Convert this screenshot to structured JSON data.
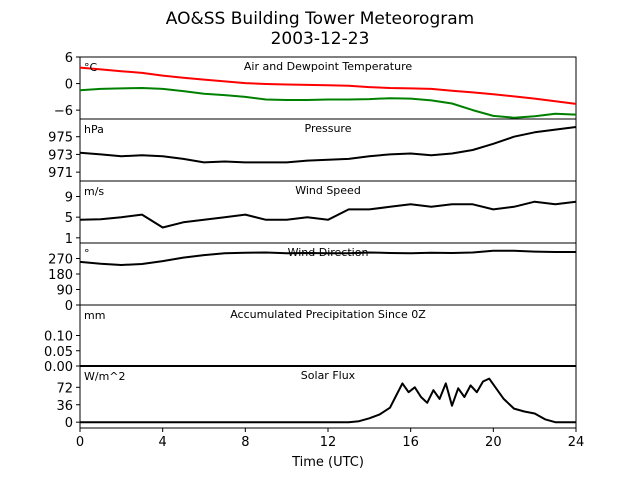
{
  "chart_data": {
    "type": "line",
    "title": [
      "AO&SS Building Tower Meteorogram",
      "2003-12-23"
    ],
    "xlabel": "Time (UTC)",
    "xlim": [
      0,
      24
    ],
    "x_ticks": [
      0,
      4,
      8,
      12,
      16,
      20,
      24
    ],
    "x_tick_labels": [
      "0",
      "4",
      "8",
      "12",
      "16",
      "20",
      "24"
    ],
    "panels": [
      {
        "name": "temperature",
        "title": "Air and Dewpoint Temperature",
        "unit": "°C",
        "ylim": [
          -8,
          6
        ],
        "y_ticks": [
          6,
          0,
          -6
        ],
        "y_tick_labels": [
          "6",
          "0",
          "−6"
        ],
        "series": [
          {
            "name": "Air Temperature",
            "color": "#ff0000",
            "x": [
              0,
              1,
              2,
              3,
              4,
              5,
              6,
              7,
              8,
              9,
              10,
              11,
              12,
              13,
              14,
              15,
              16,
              17,
              18,
              19,
              20,
              21,
              22,
              23,
              24
            ],
            "y": [
              3.6,
              3.2,
              2.8,
              2.4,
              1.8,
              1.3,
              0.9,
              0.5,
              0.1,
              -0.1,
              -0.2,
              -0.3,
              -0.4,
              -0.5,
              -0.8,
              -1.0,
              -1.1,
              -1.2,
              -1.6,
              -2.0,
              -2.4,
              -2.9,
              -3.4,
              -4.0,
              -4.6
            ]
          },
          {
            "name": "Dewpoint",
            "color": "#008000",
            "x": [
              0,
              1,
              2,
              3,
              4,
              5,
              6,
              7,
              8,
              9,
              10,
              11,
              12,
              13,
              14,
              15,
              16,
              17,
              18,
              19,
              20,
              21,
              22,
              23,
              24
            ],
            "y": [
              -1.5,
              -1.2,
              -1.1,
              -1.0,
              -1.2,
              -1.7,
              -2.3,
              -2.6,
              -3.0,
              -3.6,
              -3.7,
              -3.7,
              -3.6,
              -3.6,
              -3.5,
              -3.3,
              -3.4,
              -3.8,
              -4.5,
              -6.0,
              -7.3,
              -7.7,
              -7.4,
              -6.8,
              -7.0
            ]
          }
        ]
      },
      {
        "name": "pressure",
        "title": "Pressure",
        "unit": "hPa",
        "ylim": [
          970,
          977
        ],
        "y_ticks": [
          975,
          973,
          971
        ],
        "y_tick_labels": [
          "975",
          "973",
          "971"
        ],
        "series": [
          {
            "name": "Pressure",
            "color": "#000000",
            "x": [
              0,
              1,
              2,
              3,
              4,
              5,
              6,
              7,
              8,
              9,
              10,
              11,
              12,
              13,
              14,
              15,
              16,
              17,
              18,
              19,
              20,
              21,
              22,
              23,
              24
            ],
            "y": [
              973.2,
              973.0,
              972.8,
              972.9,
              972.8,
              972.5,
              972.1,
              972.2,
              972.1,
              972.1,
              972.1,
              972.3,
              972.4,
              972.5,
              972.8,
              973.0,
              973.1,
              972.9,
              973.1,
              973.5,
              974.2,
              975.0,
              975.5,
              975.8,
              976.1
            ]
          }
        ]
      },
      {
        "name": "wind_speed",
        "title": "Wind Speed",
        "unit": "m/s",
        "ylim": [
          0,
          12
        ],
        "y_ticks": [
          9,
          5,
          1
        ],
        "y_tick_labels": [
          "9",
          "5",
          "1"
        ],
        "series": [
          {
            "name": "Wind Speed",
            "color": "#000000",
            "x": [
              0,
              1,
              2,
              3,
              4,
              5,
              6,
              7,
              8,
              9,
              10,
              11,
              12,
              13,
              14,
              15,
              16,
              17,
              18,
              19,
              20,
              21,
              22,
              23,
              24
            ],
            "y": [
              4.5,
              4.6,
              5.0,
              5.5,
              3.0,
              4.0,
              4.5,
              5.0,
              5.5,
              4.5,
              4.5,
              5.0,
              4.5,
              6.5,
              6.5,
              7.0,
              7.5,
              7.0,
              7.5,
              7.5,
              6.5,
              7.0,
              8.0,
              7.5,
              8.0
            ]
          }
        ]
      },
      {
        "name": "wind_direction",
        "title": "Wind Direction",
        "unit": "°",
        "ylim": [
          0,
          360
        ],
        "y_ticks": [
          270,
          180,
          90,
          0
        ],
        "y_tick_labels": [
          "270",
          "180",
          "90",
          "0"
        ],
        "series": [
          {
            "name": "Wind Direction",
            "color": "#000000",
            "x": [
              0,
              1,
              2,
              3,
              4,
              5,
              6,
              7,
              8,
              9,
              10,
              11,
              12,
              13,
              14,
              15,
              16,
              17,
              18,
              19,
              20,
              21,
              22,
              23,
              24
            ],
            "y": [
              250,
              240,
              232,
              238,
              255,
              275,
              290,
              300,
              303,
              305,
              300,
              302,
              300,
              300,
              305,
              302,
              300,
              303,
              302,
              305,
              315,
              315,
              310,
              308,
              308
            ]
          }
        ]
      },
      {
        "name": "precipitation",
        "title": "Accumulated Precipitation Since 0Z",
        "unit": "mm",
        "ylim": [
          0,
          0.2
        ],
        "y_ticks": [
          0.1,
          0.05,
          0.0
        ],
        "y_tick_labels": [
          "0.10",
          "0.05",
          "0.00"
        ],
        "series": [
          {
            "name": "Precipitation",
            "color": "#000000",
            "x": [
              0,
              24
            ],
            "y": [
              0.0,
              0.0
            ]
          }
        ]
      },
      {
        "name": "solar_flux",
        "title": "Solar Flux",
        "unit": "W/m^2",
        "ylim": [
          -12,
          116
        ],
        "y_ticks": [
          72,
          36,
          0
        ],
        "y_tick_labels": [
          "72",
          "36",
          "0"
        ],
        "series": [
          {
            "name": "Solar Flux",
            "color": "#000000",
            "x": [
              0,
              12,
              13,
              13.5,
              14,
              14.5,
              15,
              15.3,
              15.6,
              15.9,
              16.2,
              16.5,
              16.8,
              17.1,
              17.4,
              17.7,
              18.0,
              18.3,
              18.6,
              18.9,
              19.2,
              19.5,
              19.8,
              20.1,
              20.5,
              21.0,
              21.5,
              22.0,
              22.5,
              23.0,
              24
            ],
            "y": [
              0,
              0,
              0,
              2,
              8,
              16,
              30,
              55,
              80,
              62,
              72,
              52,
              40,
              66,
              48,
              80,
              34,
              70,
              52,
              76,
              62,
              84,
              90,
              72,
              48,
              28,
              22,
              18,
              6,
              0,
              0
            ]
          }
        ]
      }
    ]
  }
}
